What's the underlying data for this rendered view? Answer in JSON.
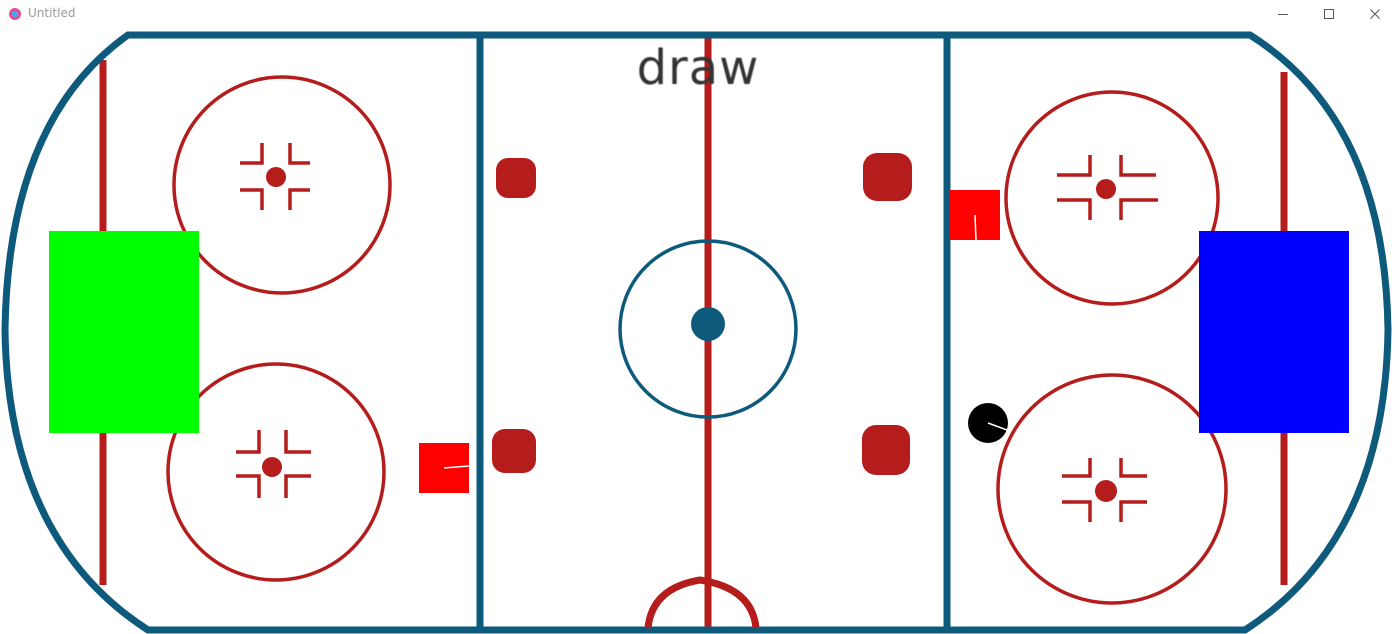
{
  "window": {
    "title": "Untitled",
    "minimize_icon": "minimize-icon",
    "maximize_icon": "maximize-icon",
    "close_icon": "close-icon"
  },
  "game": {
    "status_text": "draw",
    "colors": {
      "boards": "#0e5a7d",
      "red_lines": "#b51c1c",
      "blue_lines": "#0e5a7d",
      "left_goal": "#00ff00",
      "right_goal": "#0000ff",
      "players": "#ff0000",
      "puck": "#000000"
    },
    "objects": {
      "left_goal": "left-goal",
      "right_goal": "right-goal",
      "player_left": "player",
      "player_right": "player",
      "puck": "puck"
    }
  }
}
